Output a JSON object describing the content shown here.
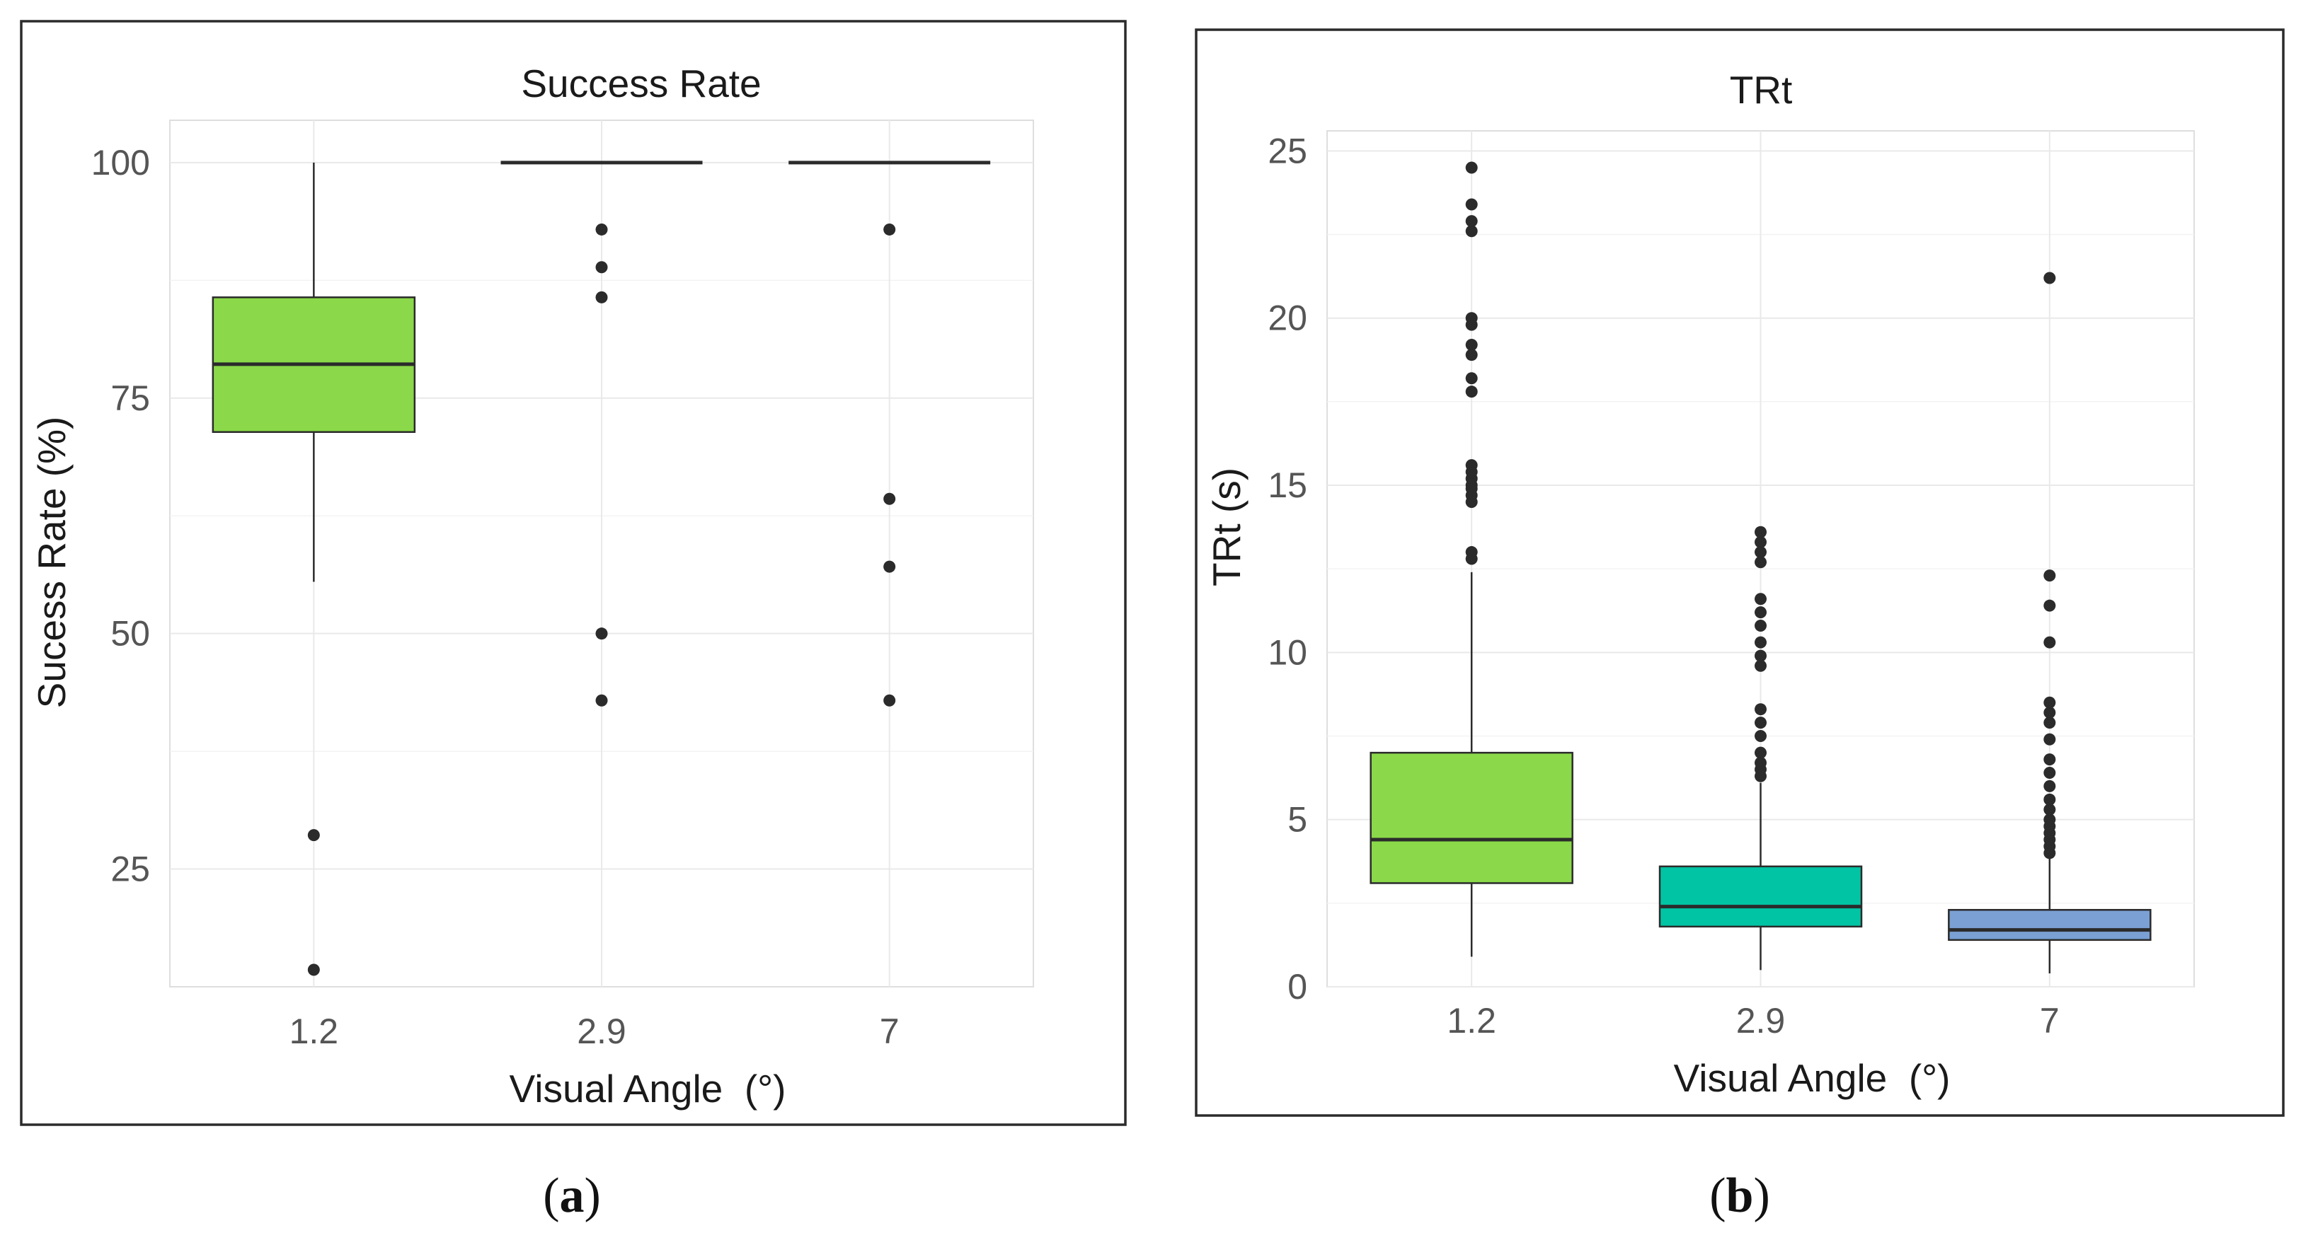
{
  "chart_data": [
    {
      "type": "box",
      "panel_caption": "a",
      "title": "Success Rate",
      "xlabel": "Visual Angle  (°)",
      "ylabel": "Sucess Rate (%)",
      "categories": [
        "1.2",
        "2.9",
        "7"
      ],
      "yticks": [
        25,
        50,
        75,
        100
      ],
      "ylim": [
        12.5,
        104.5
      ],
      "colors": [
        "#8bd94a",
        "#00c4a3",
        "#7aa0d4"
      ],
      "series": [
        {
          "name": "1.2",
          "whisker_low": 55.5,
          "q1": 71.4,
          "median": 78.6,
          "q3": 85.7,
          "whisker_high": 100,
          "outliers": [
            28.6,
            14.3
          ]
        },
        {
          "name": "2.9",
          "whisker_low": 100,
          "q1": 100,
          "median": 100,
          "q3": 100,
          "whisker_high": 100,
          "outliers": [
            92.9,
            88.9,
            85.7,
            50.0,
            42.9
          ]
        },
        {
          "name": "7",
          "whisker_low": 100,
          "q1": 100,
          "median": 100,
          "q3": 100,
          "whisker_high": 100,
          "outliers": [
            92.9,
            64.3,
            57.1,
            42.9
          ]
        }
      ]
    },
    {
      "type": "box",
      "panel_caption": "b",
      "title": "TRt",
      "xlabel": "Visual Angle  (°)",
      "ylabel": "TRt (s)",
      "categories": [
        "1.2",
        "2.9",
        "7"
      ],
      "yticks": [
        0,
        5,
        10,
        15,
        20,
        25
      ],
      "ylim": [
        0,
        25.6
      ],
      "colors": [
        "#8bd94a",
        "#00c4a3",
        "#7aa0d4"
      ],
      "series": [
        {
          "name": "1.2",
          "whisker_low": 0.9,
          "q1": 3.1,
          "median": 4.4,
          "q3": 7.0,
          "whisker_high": 12.4,
          "outliers": [
            12.8,
            13.0,
            14.5,
            14.7,
            14.9,
            15.0,
            15.2,
            15.4,
            15.6,
            17.8,
            18.2,
            18.9,
            19.2,
            19.8,
            20.0,
            22.6,
            22.9,
            23.4,
            24.5
          ]
        },
        {
          "name": "2.9",
          "whisker_low": 0.5,
          "q1": 1.8,
          "median": 2.4,
          "q3": 3.6,
          "whisker_high": 6.1,
          "outliers": [
            6.3,
            6.5,
            6.7,
            7.0,
            7.5,
            7.9,
            8.3,
            9.6,
            9.9,
            10.3,
            10.8,
            11.2,
            11.6,
            12.7,
            13.0,
            13.3,
            13.6
          ]
        },
        {
          "name": "7",
          "whisker_low": 0.4,
          "q1": 1.4,
          "median": 1.7,
          "q3": 2.3,
          "whisker_high": 3.9,
          "outliers": [
            4.0,
            4.2,
            4.4,
            4.6,
            4.8,
            5.0,
            5.3,
            5.6,
            6.0,
            6.4,
            6.8,
            7.4,
            7.9,
            8.2,
            8.5,
            10.3,
            11.4,
            12.3,
            21.2
          ]
        }
      ]
    }
  ]
}
